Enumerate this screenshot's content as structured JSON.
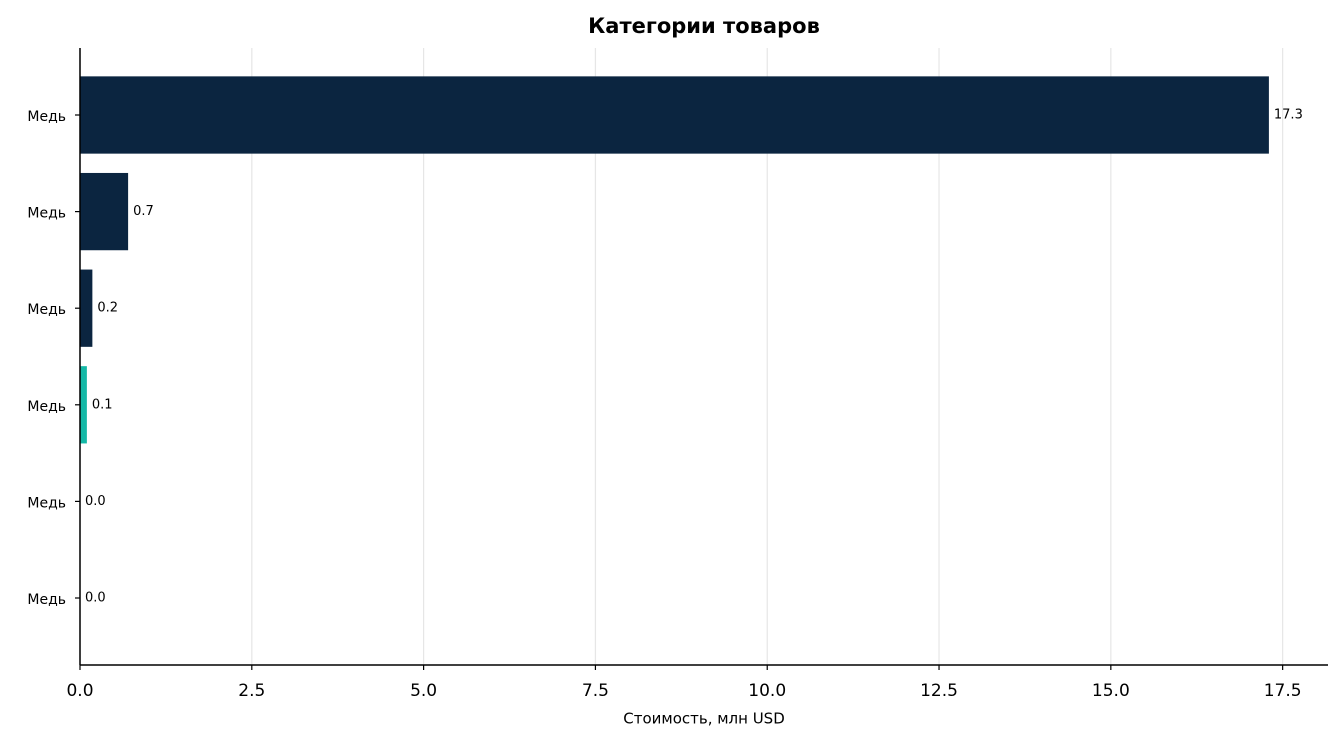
{
  "chart_data": {
    "type": "barh",
    "title": "Категории товаров",
    "xlabel": "Стоимость, млн USD",
    "categories": [
      "Медь",
      "Медь",
      "Медь",
      "Медь",
      "Медь",
      "Медь"
    ],
    "values": [
      17.3,
      0.7,
      0.18,
      0.1,
      0,
      0
    ],
    "value_labels": [
      "17.3",
      "0.7",
      "0.2",
      "0.1",
      "0.0",
      "0.0"
    ],
    "colors": [
      "#0b2540",
      "#0b2540",
      "#0b2540",
      "#14b8a6",
      "#0b2540",
      "#0b2540"
    ],
    "xlim": [
      0,
      18.16
    ],
    "xticks": [
      {
        "value": 0,
        "label": "0.0"
      },
      2.5,
      {
        "value": 5,
        "label": "5.0"
      },
      7.5,
      {
        "value": 10,
        "label": "10.0"
      },
      12.5,
      {
        "value": 15,
        "label": "15.0"
      },
      17.5
    ],
    "grid": true
  }
}
